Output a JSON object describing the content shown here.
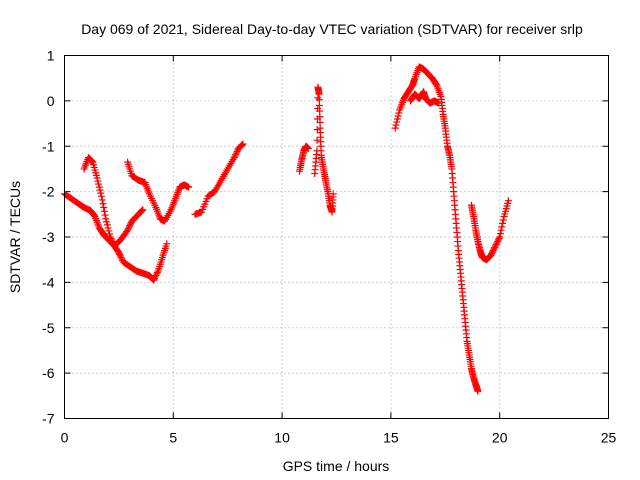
{
  "chart_data": {
    "type": "scatter",
    "title": "Day 069 of 2021, Sidereal Day-to-day VTEC variation (SDTVAR) for receiver srlp",
    "xlabel": "GPS time / hours",
    "ylabel": "SDTVAR / TECUs",
    "xlim": [
      0,
      25
    ],
    "ylim": [
      -7,
      1
    ],
    "xticks": [
      "0",
      "5",
      "10",
      "15",
      "20",
      "25"
    ],
    "yticks": [
      "1",
      "0",
      "-1",
      "-2",
      "-3",
      "-4",
      "-5",
      "-6",
      "-7"
    ],
    "grid": true,
    "marker": "+",
    "marker_color": "#ff0000",
    "series": [
      {
        "segments": [
          [
            [
              0.0,
              -2.05
            ],
            [
              0.3,
              -2.15
            ],
            [
              0.6,
              -2.25
            ],
            [
              0.9,
              -2.35
            ],
            [
              1.2,
              -2.42
            ],
            [
              1.4,
              -2.55
            ],
            [
              1.6,
              -2.8
            ],
            [
              1.8,
              -2.95
            ],
            [
              2.0,
              -3.05
            ],
            [
              2.3,
              -3.2
            ],
            [
              2.5,
              -3.35
            ],
            [
              2.7,
              -3.55
            ],
            [
              3.0,
              -3.65
            ],
            [
              3.3,
              -3.75
            ],
            [
              3.6,
              -3.8
            ],
            [
              3.9,
              -3.85
            ],
            [
              4.1,
              -3.95
            ],
            [
              4.3,
              -3.75
            ],
            [
              4.5,
              -3.45
            ],
            [
              4.7,
              -3.15
            ]
          ],
          [
            [
              0.9,
              -1.5
            ],
            [
              1.1,
              -1.25
            ],
            [
              1.3,
              -1.35
            ],
            [
              1.5,
              -1.7
            ],
            [
              1.7,
              -2.1
            ],
            [
              1.9,
              -2.6
            ],
            [
              2.1,
              -3.0
            ],
            [
              2.3,
              -3.2
            ],
            [
              2.6,
              -3.05
            ],
            [
              2.9,
              -2.85
            ],
            [
              3.1,
              -2.65
            ],
            [
              3.4,
              -2.5
            ],
            [
              3.6,
              -2.4
            ]
          ],
          [
            [
              2.9,
              -1.35
            ],
            [
              3.1,
              -1.65
            ],
            [
              3.4,
              -1.75
            ],
            [
              3.7,
              -1.8
            ],
            [
              3.9,
              -2.05
            ],
            [
              4.2,
              -2.35
            ],
            [
              4.4,
              -2.6
            ],
            [
              4.6,
              -2.65
            ],
            [
              4.9,
              -2.4
            ],
            [
              5.1,
              -2.15
            ],
            [
              5.3,
              -1.9
            ],
            [
              5.5,
              -1.85
            ],
            [
              5.7,
              -1.9
            ]
          ],
          [
            [
              6.0,
              -2.5
            ],
            [
              6.3,
              -2.45
            ],
            [
              6.6,
              -2.1
            ],
            [
              6.9,
              -2.0
            ],
            [
              7.2,
              -1.75
            ],
            [
              7.5,
              -1.5
            ],
            [
              7.8,
              -1.25
            ],
            [
              8.0,
              -1.05
            ],
            [
              8.2,
              -0.95
            ]
          ],
          [
            [
              10.8,
              -1.55
            ],
            [
              10.9,
              -1.3
            ],
            [
              11.0,
              -1.1
            ],
            [
              11.1,
              -1.0
            ],
            [
              11.2,
              -1.05
            ]
          ],
          [
            [
              11.5,
              -1.6
            ],
            [
              11.6,
              -1.1
            ],
            [
              11.65,
              0.3
            ],
            [
              11.7,
              0.15
            ],
            [
              11.75,
              -0.6
            ],
            [
              11.8,
              -1.2
            ],
            [
              11.9,
              -1.5
            ],
            [
              12.0,
              -1.75
            ],
            [
              12.1,
              -2.0
            ],
            [
              12.2,
              -2.3
            ],
            [
              12.3,
              -2.45
            ],
            [
              12.35,
              -2.05
            ]
          ],
          [
            [
              15.2,
              -0.6
            ],
            [
              15.4,
              -0.2
            ],
            [
              15.6,
              0.05
            ],
            [
              15.8,
              0.2
            ],
            [
              16.0,
              0.35
            ],
            [
              16.1,
              0.5
            ],
            [
              16.3,
              0.75
            ],
            [
              16.5,
              0.7
            ],
            [
              16.7,
              0.6
            ],
            [
              16.9,
              0.5
            ],
            [
              17.1,
              0.35
            ],
            [
              17.3,
              0.1
            ],
            [
              17.4,
              -0.3
            ],
            [
              17.5,
              -0.6
            ],
            [
              17.6,
              -1.0
            ],
            [
              17.7,
              -1.2
            ],
            [
              17.8,
              -1.5
            ],
            [
              17.9,
              -2.1
            ],
            [
              18.0,
              -2.7
            ],
            [
              18.1,
              -3.3
            ],
            [
              18.2,
              -3.8
            ],
            [
              18.3,
              -4.3
            ],
            [
              18.4,
              -4.8
            ],
            [
              18.5,
              -5.3
            ],
            [
              18.6,
              -5.6
            ],
            [
              18.7,
              -5.9
            ],
            [
              18.8,
              -6.1
            ],
            [
              18.9,
              -6.25
            ],
            [
              19.0,
              -6.4
            ]
          ],
          [
            [
              15.9,
              0.0
            ],
            [
              16.1,
              0.15
            ],
            [
              16.3,
              0.05
            ],
            [
              16.5,
              0.2
            ],
            [
              16.6,
              0.05
            ],
            [
              16.8,
              -0.05
            ],
            [
              17.0,
              0.0
            ],
            [
              17.2,
              -0.05
            ]
          ],
          [
            [
              18.7,
              -2.3
            ],
            [
              18.8,
              -2.55
            ],
            [
              18.9,
              -2.85
            ],
            [
              19.0,
              -3.1
            ],
            [
              19.1,
              -3.3
            ],
            [
              19.2,
              -3.45
            ],
            [
              19.4,
              -3.5
            ],
            [
              19.6,
              -3.4
            ],
            [
              19.8,
              -3.2
            ],
            [
              20.0,
              -3.0
            ],
            [
              20.2,
              -2.55
            ],
            [
              20.4,
              -2.2
            ]
          ]
        ]
      }
    ]
  }
}
